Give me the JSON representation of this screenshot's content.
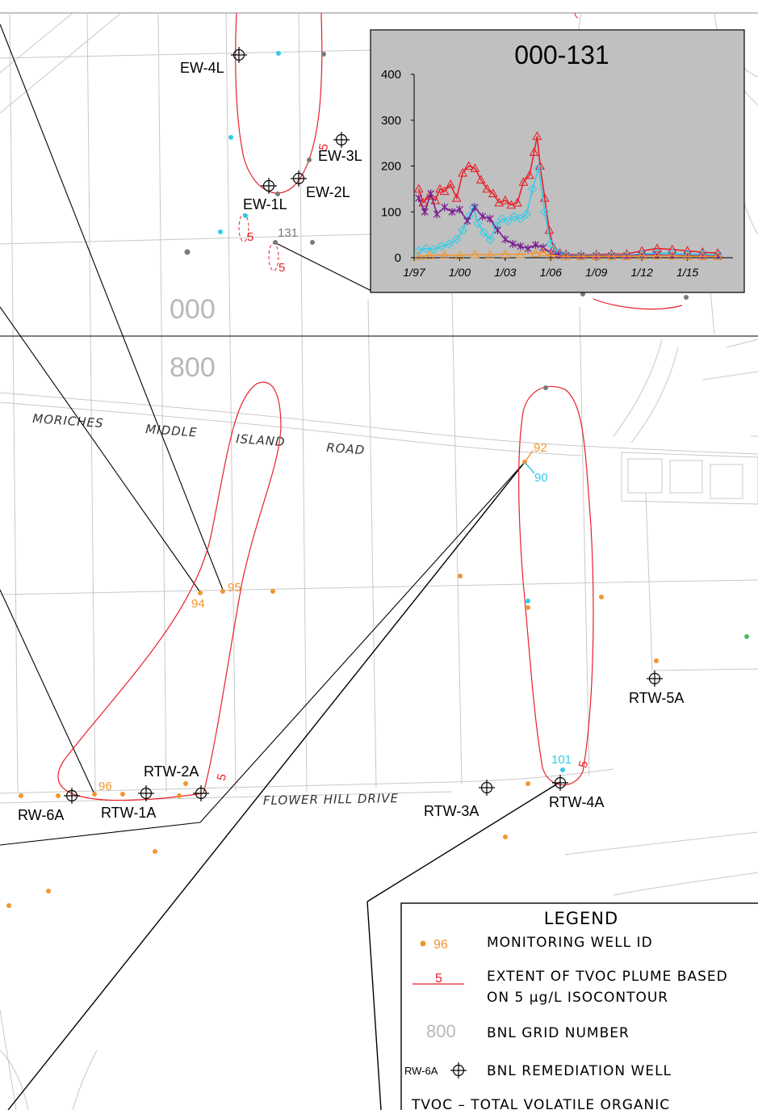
{
  "grid_numbers": [
    "000",
    "800"
  ],
  "roads": [
    "MORICHES",
    "MIDDLE",
    "ISLAND",
    "ROAD",
    "FLOWER HILL DRIVE"
  ],
  "remediation_wells": [
    "EW-4L",
    "EW-3L",
    "EW-2L",
    "EW-1L",
    "RTW-2A",
    "RW-6A",
    "RTW-1A",
    "RTW-3A",
    "RTW-4A",
    "RTW-5A"
  ],
  "monitoring_wells": {
    "w131": "131",
    "w92": "92",
    "w90": "90",
    "w95": "95",
    "w94": "94",
    "w96": "96",
    "w101": "101"
  },
  "contour_value": "5",
  "colors": {
    "plume": "#e8202a",
    "monitoring": "#f39530",
    "cyan": "#33cce8",
    "grid_label": "#b8b8b8",
    "gray_well": "#7a7a7a"
  },
  "inset_chart": {
    "chart_data": {
      "type": "line",
      "title": "000-131",
      "xlabel": "",
      "ylabel": "",
      "ylim": [
        0,
        400
      ],
      "xlim": [
        1997,
        2018
      ],
      "yticks": [
        "0",
        "100",
        "200",
        "300",
        "400"
      ],
      "xticks": [
        "1/97",
        "1/00",
        "1/03",
        "1/06",
        "1/09",
        "1/12",
        "1/15"
      ],
      "xtick_values": [
        1997,
        2000,
        2003,
        2006,
        2009,
        2012,
        2015
      ],
      "grid": false,
      "legend": "none",
      "series": [
        {
          "color": "#e8202a",
          "marker": "triangle",
          "x": [
            1997.3,
            1997.6,
            1998.0,
            1998.4,
            1998.7,
            1999.0,
            1999.4,
            1999.8,
            2000.2,
            2000.6,
            2001.0,
            2001.4,
            2001.8,
            2002.2,
            2002.6,
            2003.0,
            2003.4,
            2003.8,
            2004.2,
            2004.6,
            2004.9,
            2005.1,
            2005.3,
            2005.6,
            2005.9,
            2006.2,
            2006.6,
            2007.0,
            2008,
            2009,
            2010,
            2011,
            2012,
            2013,
            2014,
            2015,
            2016,
            2017
          ],
          "y": [
            150,
            120,
            135,
            125,
            150,
            145,
            160,
            130,
            185,
            200,
            195,
            170,
            150,
            140,
            120,
            125,
            115,
            120,
            165,
            180,
            230,
            265,
            200,
            130,
            60,
            20,
            10,
            8,
            6,
            7,
            8,
            8,
            15,
            20,
            18,
            15,
            12,
            10
          ]
        },
        {
          "color": "#33cce8",
          "marker": "diamond",
          "x": [
            1997.3,
            1997.8,
            1998.3,
            1998.8,
            1999.3,
            1999.8,
            2000.2,
            2000.6,
            2000.9,
            2001.2,
            2001.6,
            2002.0,
            2002.4,
            2002.8,
            2003.2,
            2003.6,
            2004.0,
            2004.4,
            2004.8,
            2005.2,
            2005.6,
            2006.0,
            2006.5,
            2007,
            2008,
            2009,
            2010,
            2011,
            2012,
            2013,
            2014,
            2015,
            2016,
            2017
          ],
          "y": [
            15,
            20,
            18,
            25,
            30,
            40,
            60,
            90,
            110,
            75,
            55,
            40,
            70,
            85,
            80,
            90,
            85,
            95,
            150,
            195,
            100,
            30,
            10,
            6,
            5,
            5,
            5,
            5,
            8,
            10,
            10,
            8,
            8,
            5
          ]
        },
        {
          "color": "#7a2090",
          "marker": "x",
          "x": [
            1997.3,
            1997.7,
            1998.1,
            1998.5,
            1999.0,
            1999.5,
            2000.0,
            2000.5,
            2001.0,
            2001.5,
            2002.0,
            2002.5,
            2003.0,
            2003.5,
            2004.0,
            2004.5,
            2005.0,
            2005.5,
            2006.0,
            2006.5,
            2007,
            2008,
            2009,
            2010,
            2011,
            2012,
            2013,
            2014,
            2015,
            2016,
            2017
          ],
          "y": [
            130,
            100,
            140,
            95,
            110,
            100,
            105,
            80,
            110,
            90,
            85,
            60,
            40,
            30,
            25,
            20,
            28,
            22,
            10,
            6,
            5,
            4,
            4,
            4,
            4,
            6,
            6,
            5,
            5,
            4,
            4
          ]
        },
        {
          "color": "#f39530",
          "marker": "triangle",
          "x": [
            1997.3,
            1998,
            1999,
            2000,
            2001,
            2002,
            2003,
            2004,
            2005,
            2005.5,
            2006,
            2007,
            2008,
            2009,
            2010,
            2011,
            2012,
            2013,
            2014,
            2015,
            2016,
            2017
          ],
          "y": [
            3,
            5,
            6,
            5,
            7,
            6,
            8,
            7,
            10,
            12,
            5,
            3,
            3,
            3,
            3,
            3,
            4,
            4,
            4,
            3,
            3,
            3
          ]
        }
      ]
    }
  },
  "legend": {
    "title": "LEGEND",
    "monitoring_sample": "96",
    "monitoring_text": "MONITORING WELL ID",
    "plume_sample": "5",
    "plume_text_1": "EXTENT OF TVOC PLUME BASED",
    "plume_text_2": "ON 5 μg/L ISOCONTOUR",
    "grid_sample": "800",
    "grid_text": "BNL GRID NUMBER",
    "remediation_sample": "RW-6A",
    "remediation_text": "BNL REMEDIATION WELL",
    "tvoc_text": "TVOC – TOTAL VOLATILE ORGANIC"
  }
}
